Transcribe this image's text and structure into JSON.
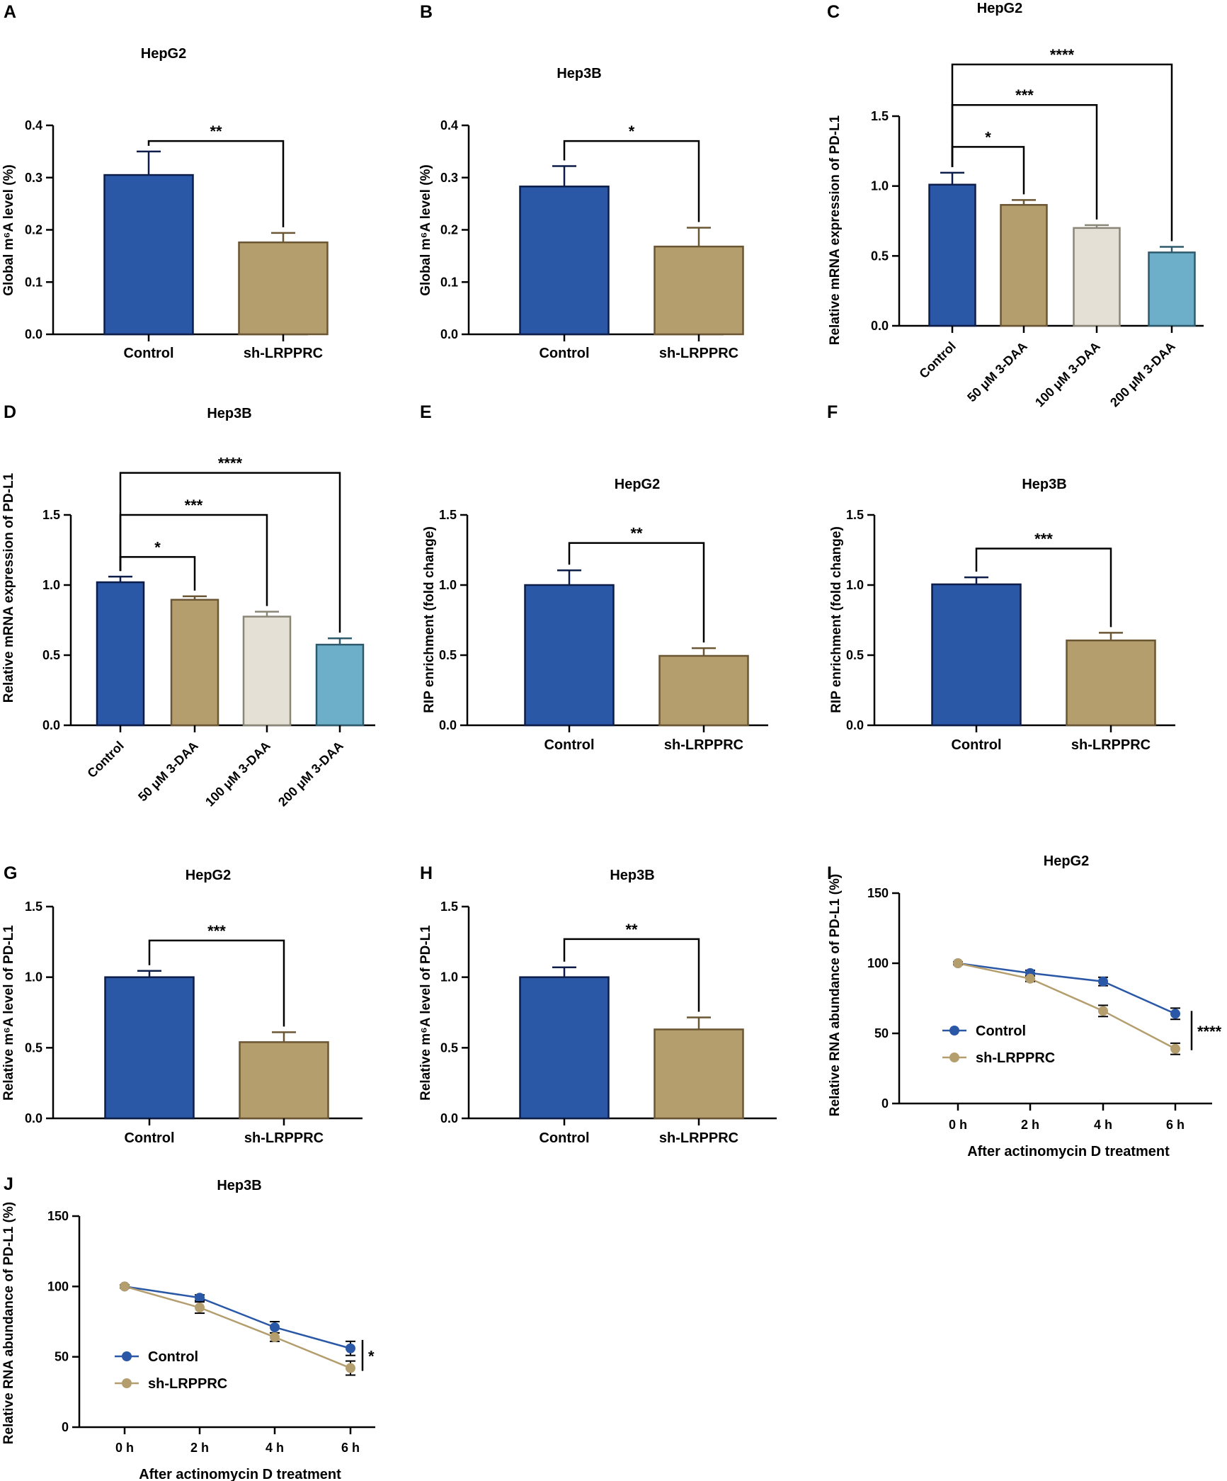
{
  "colors": {
    "control": "#2b58a6",
    "control_edge": "#0d1d4a",
    "shLRPPRC": "#b49e6e",
    "shLRPPRC_edge": "#6b5634",
    "daa100": "#e4e0d6",
    "daa100_edge": "#8a8678",
    "daa200": "#6dafc9",
    "daa200_edge": "#2e5a6e",
    "ink": "#000000"
  },
  "chart_data": [
    {
      "panel": "A",
      "type": "bar",
      "title": "HepG2",
      "ylabel": "Global m⁶A level (%)",
      "ylim": [
        0,
        0.4
      ],
      "yticks": [
        "0.0",
        "0.1",
        "0.2",
        "0.3",
        "0.4"
      ],
      "ytick_values": [
        0,
        0.1,
        0.2,
        0.3,
        0.4
      ],
      "categories": [
        "Control",
        "sh-LRPPRC"
      ],
      "values": [
        0.305,
        0.176
      ],
      "errors": [
        0.045,
        0.018
      ],
      "fills": [
        "control",
        "shLRPPRC"
      ],
      "significance": [
        {
          "from": 0,
          "to": 1,
          "label": "**",
          "y": 0.37
        }
      ]
    },
    {
      "panel": "B",
      "type": "bar",
      "title": "Hep3B",
      "ylabel": "Global m⁶A level (%)",
      "ylim": [
        0,
        0.4
      ],
      "yticks": [
        "0.0",
        "0.1",
        "0.2",
        "0.3",
        "0.4"
      ],
      "ytick_values": [
        0,
        0.1,
        0.2,
        0.3,
        0.4
      ],
      "categories": [
        "Control",
        "sh-LRPPRC"
      ],
      "values": [
        0.283,
        0.168
      ],
      "errors": [
        0.039,
        0.036
      ],
      "fills": [
        "control",
        "shLRPPRC"
      ],
      "significance": [
        {
          "from": 0,
          "to": 1,
          "label": "*",
          "y": 0.37
        }
      ]
    },
    {
      "panel": "C",
      "type": "bar",
      "title": "HepG2",
      "ylabel": "Relative mRNA expression of PD-L1",
      "ylim": [
        0,
        1.5
      ],
      "yticks": [
        "0.0",
        "0.5",
        "1.0",
        "1.5"
      ],
      "ytick_values": [
        0,
        0.5,
        1.0,
        1.5
      ],
      "categories": [
        "Control",
        "50 μM 3-DAA",
        "100 μM 3-DAA",
        "200 μM 3-DAA"
      ],
      "rotated_labels": true,
      "values": [
        1.01,
        0.865,
        0.7,
        0.525
      ],
      "errors": [
        0.085,
        0.035,
        0.02,
        0.04
      ],
      "fills": [
        "control",
        "shLRPPRC",
        "daa100",
        "daa200"
      ],
      "significance": [
        {
          "from": 0,
          "to": 1,
          "label": "*",
          "y": 1.28
        },
        {
          "from": 0,
          "to": 2,
          "label": "***",
          "y": 1.58
        },
        {
          "from": 0,
          "to": 3,
          "label": "****",
          "y": 1.87
        }
      ]
    },
    {
      "panel": "D",
      "type": "bar",
      "title": "Hep3B",
      "ylabel": "Relative mRNA expression of PD-L1",
      "ylim": [
        0,
        1.5
      ],
      "yticks": [
        "0.0",
        "0.5",
        "1.0",
        "1.5"
      ],
      "ytick_values": [
        0,
        0.5,
        1.0,
        1.5
      ],
      "categories": [
        "Control",
        "50 μM 3-DAA",
        "100 μM 3-DAA",
        "200 μM 3-DAA"
      ],
      "rotated_labels": true,
      "values": [
        1.02,
        0.895,
        0.775,
        0.575
      ],
      "errors": [
        0.04,
        0.025,
        0.035,
        0.045
      ],
      "fills": [
        "control",
        "shLRPPRC",
        "daa100",
        "daa200"
      ],
      "significance": [
        {
          "from": 0,
          "to": 1,
          "label": "*",
          "y": 1.2
        },
        {
          "from": 0,
          "to": 2,
          "label": "***",
          "y": 1.5
        },
        {
          "from": 0,
          "to": 3,
          "label": "****",
          "y": 1.8
        }
      ]
    },
    {
      "panel": "E",
      "type": "bar",
      "title": "HepG2",
      "ylabel": "RIP enrichment (fold change)",
      "ylim": [
        0,
        1.5
      ],
      "yticks": [
        "0.0",
        "0.5",
        "1.0",
        "1.5"
      ],
      "ytick_values": [
        0,
        0.5,
        1.0,
        1.5
      ],
      "categories": [
        "Control",
        "sh-LRPPRC"
      ],
      "values": [
        1.0,
        0.495
      ],
      "errors": [
        0.105,
        0.055
      ],
      "fills": [
        "control",
        "shLRPPRC"
      ],
      "significance": [
        {
          "from": 0,
          "to": 1,
          "label": "**",
          "y": 1.3
        }
      ]
    },
    {
      "panel": "F",
      "type": "bar",
      "title": "Hep3B",
      "ylabel": "RIP enrichment (fold change)",
      "ylim": [
        0,
        1.5
      ],
      "yticks": [
        "0.0",
        "0.5",
        "1.0",
        "1.5"
      ],
      "ytick_values": [
        0,
        0.5,
        1.0,
        1.5
      ],
      "categories": [
        "Control",
        "sh-LRPPRC"
      ],
      "values": [
        1.005,
        0.605
      ],
      "errors": [
        0.05,
        0.055
      ],
      "fills": [
        "control",
        "shLRPPRC"
      ],
      "significance": [
        {
          "from": 0,
          "to": 1,
          "label": "***",
          "y": 1.26
        }
      ]
    },
    {
      "panel": "G",
      "type": "bar",
      "title": "HepG2",
      "ylabel": "Relative m⁶A level of PD-L1",
      "ylim": [
        0,
        1.5
      ],
      "yticks": [
        "0.0",
        "0.5",
        "1.0",
        "1.5"
      ],
      "ytick_values": [
        0,
        0.5,
        1.0,
        1.5
      ],
      "categories": [
        "Control",
        "sh-LRPPRC"
      ],
      "values": [
        1.0,
        0.54
      ],
      "errors": [
        0.045,
        0.07
      ],
      "fills": [
        "control",
        "shLRPPRC"
      ],
      "significance": [
        {
          "from": 0,
          "to": 1,
          "label": "***",
          "y": 1.26
        }
      ]
    },
    {
      "panel": "H",
      "type": "bar",
      "title": "Hep3B",
      "ylabel": "Relative m⁶A level of PD-L1",
      "ylim": [
        0,
        1.5
      ],
      "yticks": [
        "0.0",
        "0.5",
        "1.0",
        "1.5"
      ],
      "ytick_values": [
        0,
        0.5,
        1.0,
        1.5
      ],
      "categories": [
        "Control",
        "sh-LRPPRC"
      ],
      "values": [
        1.0,
        0.63
      ],
      "errors": [
        0.07,
        0.085
      ],
      "fills": [
        "control",
        "shLRPPRC"
      ],
      "significance": [
        {
          "from": 0,
          "to": 1,
          "label": "**",
          "y": 1.27
        }
      ]
    },
    {
      "panel": "I",
      "type": "line",
      "title": "HepG2",
      "ylabel": "Relative RNA abundance of PD-L1 (%)",
      "xlabel": "After actinomycin D treatment",
      "ylim": [
        0,
        150
      ],
      "yticks": [
        "0",
        "50",
        "100",
        "150"
      ],
      "ytick_values": [
        0,
        50,
        100,
        150
      ],
      "categories": [
        "0 h",
        "2 h",
        "4 h",
        "6 h"
      ],
      "series": [
        {
          "name": "Control",
          "color": "control",
          "values": [
            100,
            93,
            87,
            64
          ],
          "errors": [
            1,
            2,
            3,
            4
          ]
        },
        {
          "name": "sh-LRPPRC",
          "color": "shLRPPRC",
          "values": [
            100,
            89,
            66,
            39
          ],
          "errors": [
            1,
            2,
            4,
            4
          ]
        }
      ],
      "significance": {
        "label": "****",
        "range": [
          38,
          66
        ]
      },
      "legend_position": "left"
    },
    {
      "panel": "J",
      "type": "line",
      "title": "Hep3B",
      "ylabel": "Relative RNA abundance of PD-L1 (%)",
      "xlabel": "After actinomycin D treatment",
      "ylim": [
        0,
        150
      ],
      "yticks": [
        "0",
        "50",
        "100",
        "150"
      ],
      "ytick_values": [
        0,
        50,
        100,
        150
      ],
      "categories": [
        "0 h",
        "2 h",
        "4 h",
        "6 h"
      ],
      "series": [
        {
          "name": "Control",
          "color": "control",
          "values": [
            100,
            92,
            71,
            56
          ],
          "errors": [
            1,
            2,
            4,
            5
          ]
        },
        {
          "name": "sh-LRPPRC",
          "color": "shLRPPRC",
          "values": [
            100,
            85,
            64,
            42
          ],
          "errors": [
            1,
            4,
            3,
            5
          ]
        }
      ],
      "significance": {
        "label": "*",
        "range": [
          40,
          62
        ]
      },
      "legend_position": "left"
    }
  ]
}
